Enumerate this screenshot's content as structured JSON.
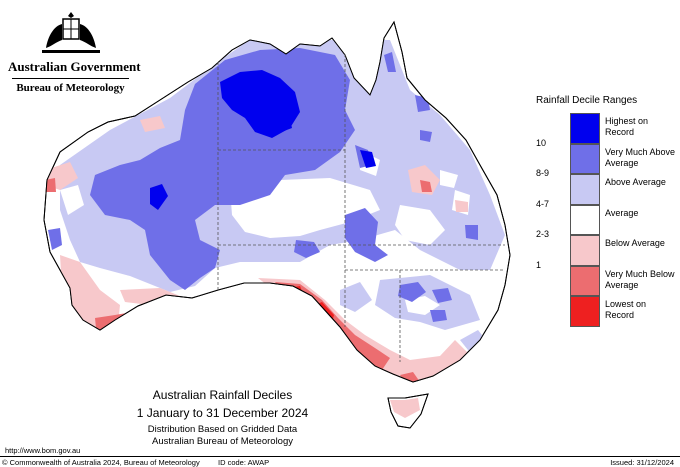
{
  "header": {
    "government": "Australian Government",
    "bureau": "Bureau of Meteorology"
  },
  "map": {
    "title": "Australian Rainfall Deciles",
    "period": "1 January to 31 December 2024",
    "subtitle1": "Distribution Based on Gridded Data",
    "subtitle2": "Australian Bureau of Meteorology"
  },
  "legend": {
    "title": "Rainfall Decile Ranges",
    "items": [
      {
        "range": "",
        "label": "Highest on Record",
        "color": "#0000ee"
      },
      {
        "range": "10",
        "label": "Very Much Above Average",
        "color": "#6f6fe8"
      },
      {
        "range": "8-9",
        "label": "Above Average",
        "color": "#c8c9f3"
      },
      {
        "range": "4-7",
        "label": "Average",
        "color": "#ffffff"
      },
      {
        "range": "2-3",
        "label": "Below Average",
        "color": "#f7c8cb"
      },
      {
        "range": "1",
        "label": "Very Much Below Average",
        "color": "#ec6d70"
      },
      {
        "range": "",
        "label": "Lowest on Record",
        "color": "#ee2020"
      }
    ]
  },
  "footer": {
    "url": "http://www.bom.gov.au",
    "copyright": "© Commonwealth of Australia 2024, Bureau of Meteorology",
    "id_code": "ID code: AWAP",
    "issued": "Issued: 31/12/2024"
  }
}
